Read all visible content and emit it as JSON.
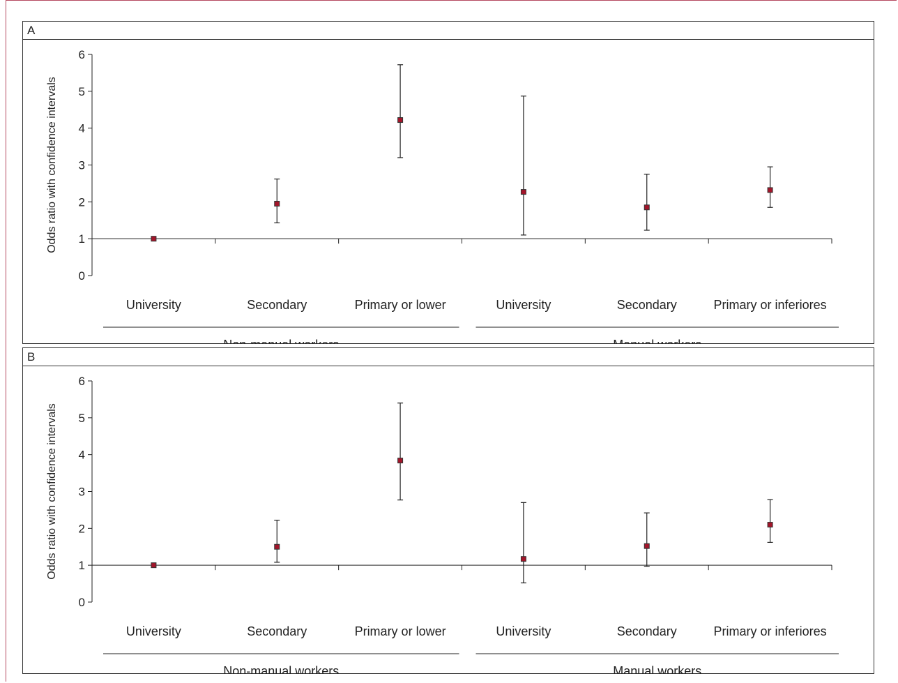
{
  "colors": {
    "marker": "#a3152a",
    "axis": "#222222",
    "frame": "#b5485f"
  },
  "chart_data": [
    {
      "panel": "A",
      "type": "scatter",
      "ylabel": "Odds ratio with confidence intervals",
      "ylim": [
        0,
        6
      ],
      "yticks": [
        0,
        1,
        2,
        3,
        4,
        5,
        6
      ],
      "reference_line": 1,
      "categories": [
        "University",
        "Secondary",
        "Primary or lower",
        "University",
        "Secondary",
        "Primary or inferiores"
      ],
      "groups": [
        {
          "label": "Non-manual workers",
          "from": 0,
          "to": 2
        },
        {
          "label": "Manual workers",
          "from": 3,
          "to": 5
        }
      ],
      "values": [
        1.0,
        1.95,
        4.22,
        2.27,
        1.85,
        2.32
      ],
      "ci_low": [
        1.0,
        1.43,
        3.2,
        1.1,
        1.23,
        1.85
      ],
      "ci_high": [
        1.0,
        2.62,
        5.72,
        4.87,
        2.75,
        2.95
      ]
    },
    {
      "panel": "B",
      "type": "scatter",
      "ylabel": "Odds ratio with confidence intervals",
      "ylim": [
        0,
        6
      ],
      "yticks": [
        0,
        1,
        2,
        3,
        4,
        5,
        6
      ],
      "reference_line": 1,
      "categories": [
        "University",
        "Secondary",
        "Primary or lower",
        "University",
        "Secondary",
        "Primary or inferiores"
      ],
      "groups": [
        {
          "label": "Non-manual workers",
          "from": 0,
          "to": 2
        },
        {
          "label": "Manual workers",
          "from": 3,
          "to": 5
        }
      ],
      "values": [
        1.0,
        1.5,
        3.84,
        1.17,
        1.52,
        2.1
      ],
      "ci_low": [
        1.0,
        1.08,
        2.77,
        0.52,
        0.97,
        1.62
      ],
      "ci_high": [
        1.0,
        2.22,
        5.4,
        2.7,
        2.42,
        2.78
      ]
    }
  ]
}
